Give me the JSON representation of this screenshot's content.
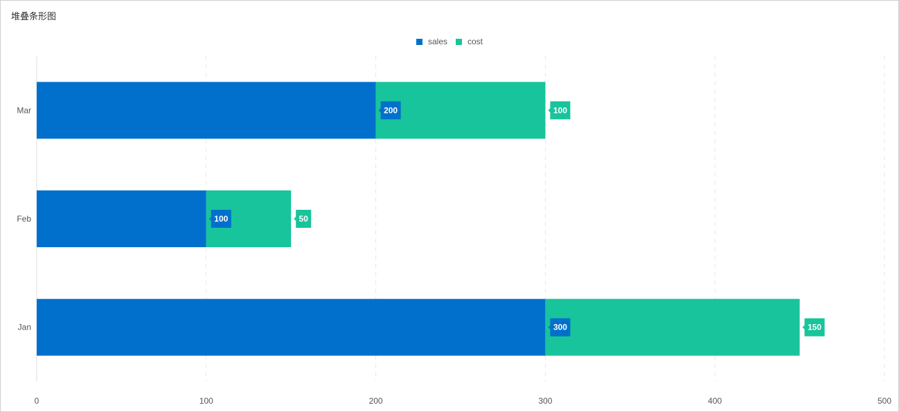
{
  "chart_data": {
    "type": "bar",
    "orientation": "horizontal",
    "stacked": true,
    "title": "堆叠条形图",
    "categories": [
      "Jan",
      "Feb",
      "Mar"
    ],
    "series": [
      {
        "name": "sales",
        "color": "#0070cc",
        "values": [
          300,
          100,
          200
        ]
      },
      {
        "name": "cost",
        "color": "#18c49b",
        "values": [
          150,
          50,
          100
        ]
      }
    ],
    "xlim": [
      0,
      500
    ],
    "xticks": [
      0,
      100,
      200,
      300,
      400,
      500
    ],
    "grid": "vertical-dashed",
    "legend_position": "top-center",
    "data_labels": true
  }
}
